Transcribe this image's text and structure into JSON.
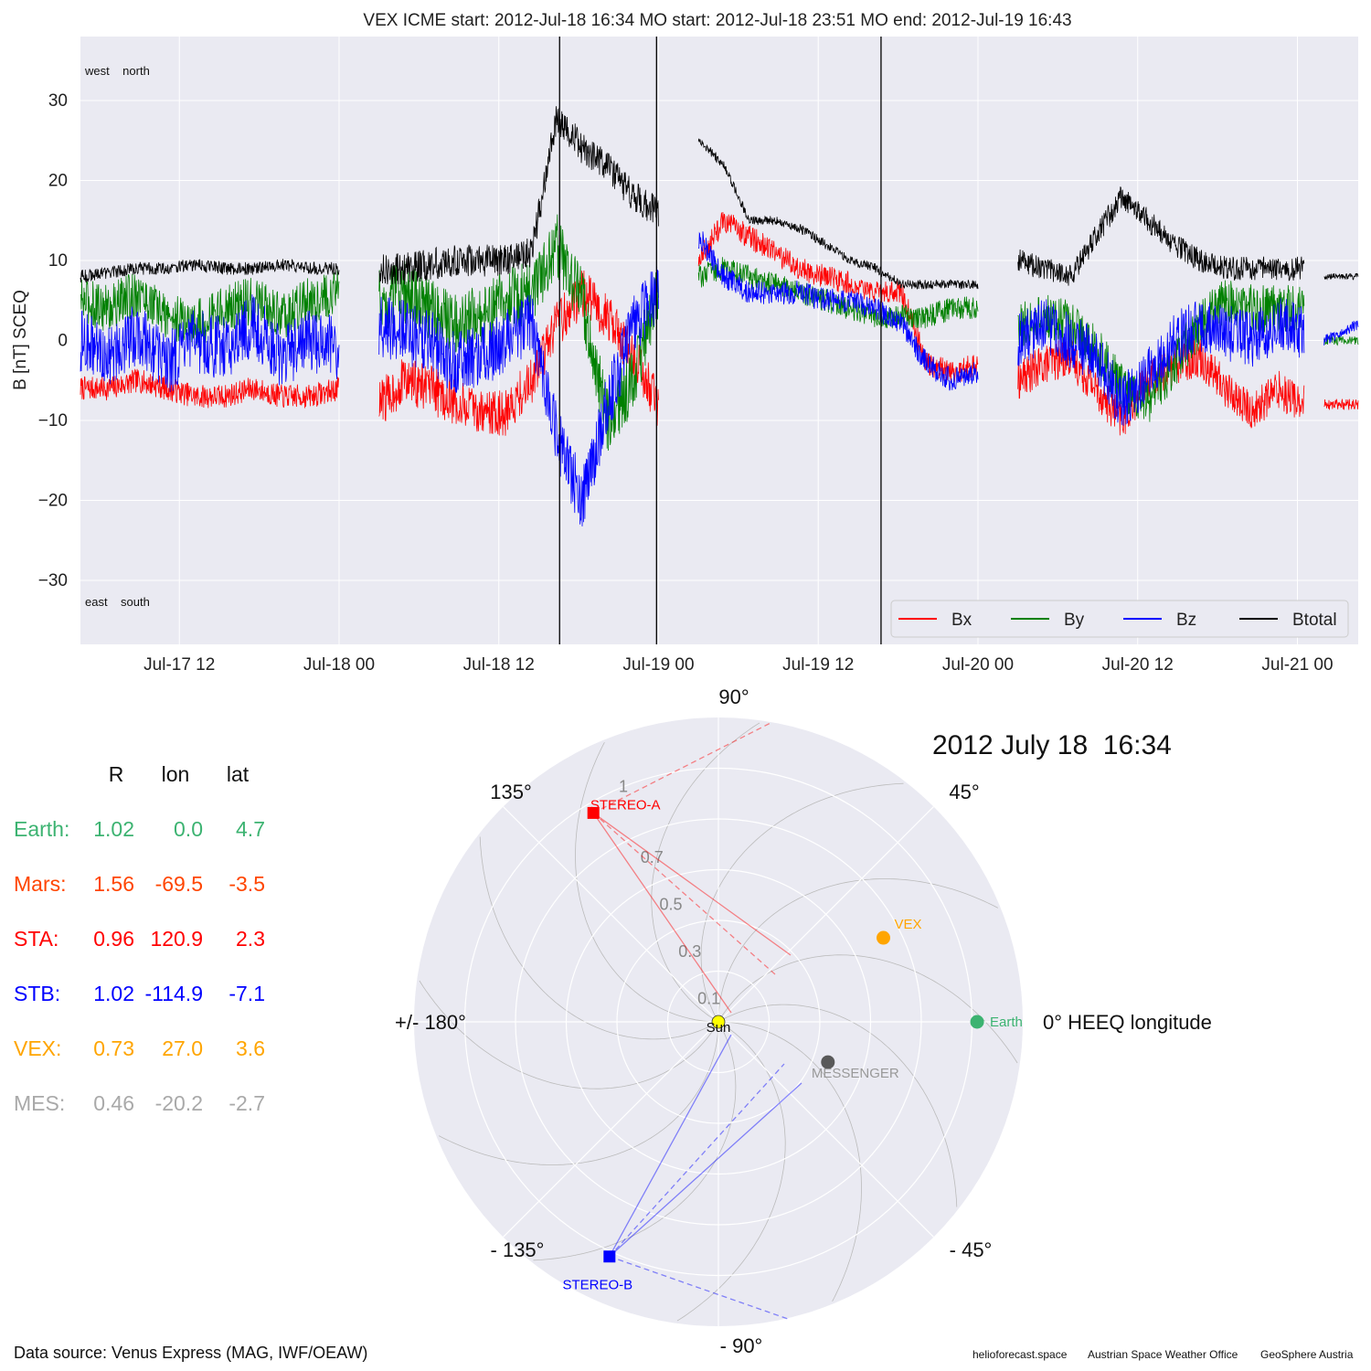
{
  "colors": {
    "bx": "#ff0000",
    "by": "#008000",
    "bz": "#0000ff",
    "bt": "#000000",
    "earth": "#3cb371",
    "mars": "#ff4500",
    "sta": "#ff0000",
    "stb": "#0000ff",
    "vex": "#ffa500",
    "mes": "#a9a9a9",
    "panel_bg": "#eaeaf2"
  },
  "chart_data": [
    {
      "type": "line",
      "title": "VEX    ICME start: 2012-Jul-18 16:34   MO start: 2012-Jul-18 23:51   MO end: 2012-Jul-19 16:43",
      "ylabel": "B [nT] SCEQ",
      "xlabel": "",
      "ylim": [
        -38,
        38
      ],
      "xlim": [
        "2012-07-17 04:34",
        "2012-07-21 04:34"
      ],
      "yticks": [
        30,
        20,
        10,
        0,
        -10,
        -20,
        -30
      ],
      "ytick_labels": [
        "30",
        "20",
        "10",
        "0",
        "−10",
        "−20",
        "−30"
      ],
      "xticks": [
        "2012-07-17 12:00",
        "2012-07-18 00:00",
        "2012-07-18 12:00",
        "2012-07-19 00:00",
        "2012-07-19 12:00",
        "2012-07-20 00:00",
        "2012-07-20 12:00",
        "2012-07-21 00:00"
      ],
      "xtick_labels": [
        "Jul-17 12",
        "Jul-18 00",
        "Jul-18 12",
        "Jul-19 00",
        "Jul-19 12",
        "Jul-20 00",
        "Jul-20 12",
        "Jul-21 00"
      ],
      "grid": true,
      "legend_position": "bottom-right",
      "corner_labels": {
        "top_left": "west    north",
        "bottom_left": "east    south"
      },
      "vertical_lines": [
        {
          "label": "ICME start",
          "time": "2012-07-18 16:34"
        },
        {
          "label": "MO start",
          "time": "2012-07-18 23:51"
        },
        {
          "label": "MO end",
          "time": "2012-07-19 16:43"
        }
      ],
      "series": [
        {
          "name": "Bx",
          "segments": [
            {
              "t0": "2012-07-17 04:34",
              "t1": "2012-07-18 00:00",
              "base": [
                -6,
                -6,
                -5,
                -6,
                -7,
                -7,
                -6,
                -7,
                -7,
                -6
              ],
              "noise": 1.5
            },
            {
              "t0": "2012-07-18 03:00",
              "t1": "2012-07-19 00:00",
              "base": [
                -8,
                -5,
                -6,
                -8,
                -9,
                -9,
                -5,
                2,
                6,
                3,
                -2,
                -8
              ],
              "noise": 3
            },
            {
              "t0": "2012-07-19 03:00",
              "t1": "2012-07-20 00:00",
              "base": [
                10,
                15,
                13,
                11,
                9,
                8,
                7,
                6,
                6,
                -3,
                -4,
                -3
              ],
              "noise": 1.5
            },
            {
              "t0": "2012-07-20 03:00",
              "t1": "2012-07-21 00:30",
              "base": [
                -5,
                -3,
                -2,
                -6,
                -10,
                -5,
                -3,
                -2,
                -6,
                -9,
                -6,
                -8
              ],
              "noise": 2.5
            },
            {
              "t0": "2012-07-21 02:00",
              "t1": "2012-07-21 04:34",
              "base": [
                -8,
                -8
              ],
              "noise": 0.7
            }
          ]
        },
        {
          "name": "By",
          "segments": [
            {
              "t0": "2012-07-17 04:34",
              "t1": "2012-07-18 00:00",
              "base": [
                5,
                4,
                6,
                3,
                2,
                4,
                5,
                3,
                5,
                6
              ],
              "noise": 3
            },
            {
              "t0": "2012-07-18 03:00",
              "t1": "2012-07-19 00:00",
              "base": [
                5,
                6,
                4,
                2,
                3,
                5,
                6,
                12,
                5,
                -10,
                -5,
                6
              ],
              "noise": 4
            },
            {
              "t0": "2012-07-19 03:00",
              "t1": "2012-07-20 00:00",
              "base": [
                8,
                9,
                8,
                7,
                6,
                5,
                4,
                3,
                3,
                3,
                4,
                4
              ],
              "noise": 1.5
            },
            {
              "t0": "2012-07-20 03:00",
              "t1": "2012-07-21 00:30",
              "base": [
                2,
                3,
                2,
                -1,
                -6,
                -8,
                -3,
                2,
                5,
                4,
                4,
                4
              ],
              "noise": 3
            },
            {
              "t0": "2012-07-21 02:00",
              "t1": "2012-07-21 04:34",
              "base": [
                0,
                0
              ],
              "noise": 0.6
            }
          ]
        },
        {
          "name": "Bz",
          "segments": [
            {
              "t0": "2012-07-17 04:34",
              "t1": "2012-07-18 00:00",
              "base": [
                0,
                -2,
                1,
                -3,
                0,
                -1,
                2,
                -2,
                0,
                -1
              ],
              "noise": 4
            },
            {
              "t0": "2012-07-18 03:00",
              "t1": "2012-07-19 00:00",
              "base": [
                2,
                1,
                0,
                -3,
                -2,
                0,
                2,
                -12,
                -20,
                -8,
                2,
                6
              ],
              "noise": 4
            },
            {
              "t0": "2012-07-19 03:00",
              "t1": "2012-07-20 00:00",
              "base": [
                13,
                8,
                6,
                6,
                6,
                5,
                5,
                4,
                2,
                -3,
                -5,
                -4
              ],
              "noise": 1.5
            },
            {
              "t0": "2012-07-20 03:00",
              "t1": "2012-07-21 00:30",
              "base": [
                0,
                2,
                0,
                -2,
                -8,
                -4,
                0,
                2,
                1,
                0,
                2,
                1
              ],
              "noise": 3.5
            },
            {
              "t0": "2012-07-21 02:00",
              "t1": "2012-07-21 04:34",
              "base": [
                0,
                2
              ],
              "noise": 0.7
            }
          ]
        },
        {
          "name": "Btotal",
          "segments": [
            {
              "t0": "2012-07-17 04:34",
              "t1": "2012-07-18 00:00",
              "base": [
                8,
                8.5,
                9,
                9,
                9.5,
                9,
                9,
                9.5,
                9,
                9
              ],
              "noise": 0.8
            },
            {
              "t0": "2012-07-18 03:00",
              "t1": "2012-07-19 00:00",
              "base": [
                9,
                9,
                9.5,
                10,
                10,
                10,
                11,
                28,
                24,
                22,
                18,
                16
              ],
              "noise": 2
            },
            {
              "t0": "2012-07-19 03:00",
              "t1": "2012-07-20 00:00",
              "base": [
                25,
                22,
                15,
                15,
                14,
                12,
                10,
                9,
                7,
                7,
                7,
                7
              ],
              "noise": 0.6
            },
            {
              "t0": "2012-07-20 03:00",
              "t1": "2012-07-21 00:30",
              "base": [
                10,
                9,
                8,
                13,
                18,
                15,
                12,
                10,
                9,
                9,
                9,
                9
              ],
              "noise": 1.5
            },
            {
              "t0": "2012-07-21 02:00",
              "t1": "2012-07-21 04:34",
              "base": [
                8,
                8
              ],
              "noise": 0.4
            }
          ]
        }
      ]
    },
    {
      "type": "scatter",
      "projection": "polar",
      "date_label": "2012 July 18  16:34",
      "angle_labels": [
        {
          "deg": 90,
          "text": "90°"
        },
        {
          "deg": 45,
          "text": "45°"
        },
        {
          "deg": 0,
          "text": "0° HEEQ longitude"
        },
        {
          "deg": -45,
          "text": "- 45°"
        },
        {
          "deg": -90,
          "text": "- 90°"
        },
        {
          "deg": -135,
          "text": "- 135°"
        },
        {
          "deg": 180,
          "text": "+/- 180°"
        },
        {
          "deg": 135,
          "text": "135°"
        }
      ],
      "radial_ticks": [
        "0.1",
        "0.3",
        "0.5",
        "0.7",
        "1"
      ],
      "r_max": 1.2,
      "bodies": [
        {
          "name": "Earth",
          "r": 1.02,
          "lon": 0.0,
          "color": "#3cb371"
        },
        {
          "name": "VEX",
          "r": 0.73,
          "lon": 27.0,
          "color": "#ffa500"
        },
        {
          "name": "MESSENGER",
          "r": 0.46,
          "lon": -20.2,
          "color": "#595959"
        },
        {
          "name": "STEREO-A",
          "r": 0.96,
          "lon": 120.9,
          "color": "#ff0000",
          "marker": "square"
        },
        {
          "name": "STEREO-B",
          "r": 1.02,
          "lon": -114.9,
          "color": "#0000ff",
          "marker": "square"
        }
      ],
      "sun_label": "Sun"
    }
  ],
  "table": {
    "headers": [
      "R",
      "lon",
      "lat"
    ],
    "rows": [
      {
        "name": "Earth:",
        "r": "1.02",
        "lon": "0.0",
        "lat": "4.7",
        "color": "#3cb371"
      },
      {
        "name": "Mars:",
        "r": "1.56",
        "lon": "-69.5",
        "lat": "-3.5",
        "color": "#ff4500"
      },
      {
        "name": "STA:",
        "r": "0.96",
        "lon": "120.9",
        "lat": "2.3",
        "color": "#ff0000"
      },
      {
        "name": "STB:",
        "r": "1.02",
        "lon": "-114.9",
        "lat": "-7.1",
        "color": "#0000ff"
      },
      {
        "name": "VEX:",
        "r": "0.73",
        "lon": "27.0",
        "lat": "3.6",
        "color": "#ffa500"
      },
      {
        "name": "MES:",
        "r": "0.46",
        "lon": "-20.2",
        "lat": "-2.7",
        "color": "#a9a9a9"
      }
    ]
  },
  "footer": {
    "source": "Data source: Venus Express (MAG, IWF/OEAW)",
    "credits": [
      "helioforecast.space",
      "Austrian Space Weather Office",
      "GeoSphere Austria"
    ]
  }
}
